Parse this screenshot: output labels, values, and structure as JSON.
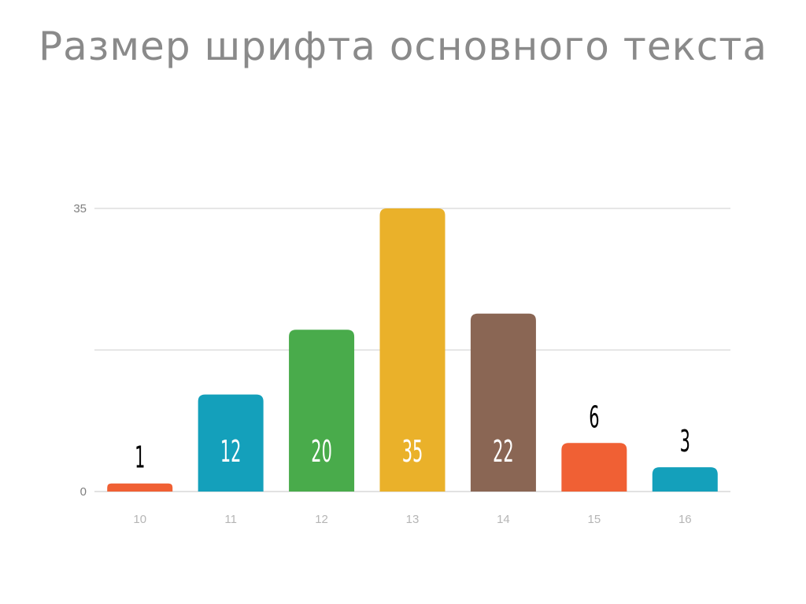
{
  "slide": {
    "title": "Размер шрифта основного текста"
  },
  "chart_data": {
    "type": "bar",
    "categories": [
      "10",
      "11",
      "12",
      "13",
      "14",
      "15",
      "16"
    ],
    "values": [
      1,
      12,
      20,
      35,
      22,
      6,
      3
    ],
    "ylim": [
      0,
      35
    ],
    "yticks": [
      0,
      35
    ],
    "grid": true,
    "legend": "none",
    "colors": [
      "#f06034",
      "#14a0bb",
      "#49ab4b",
      "#eab12a",
      "#8a6654",
      "#f06034",
      "#14a0bb"
    ],
    "label_color_inside": "#ffffff",
    "label_color_outside": "#000000",
    "gridline_color": "#d8d8d8"
  }
}
